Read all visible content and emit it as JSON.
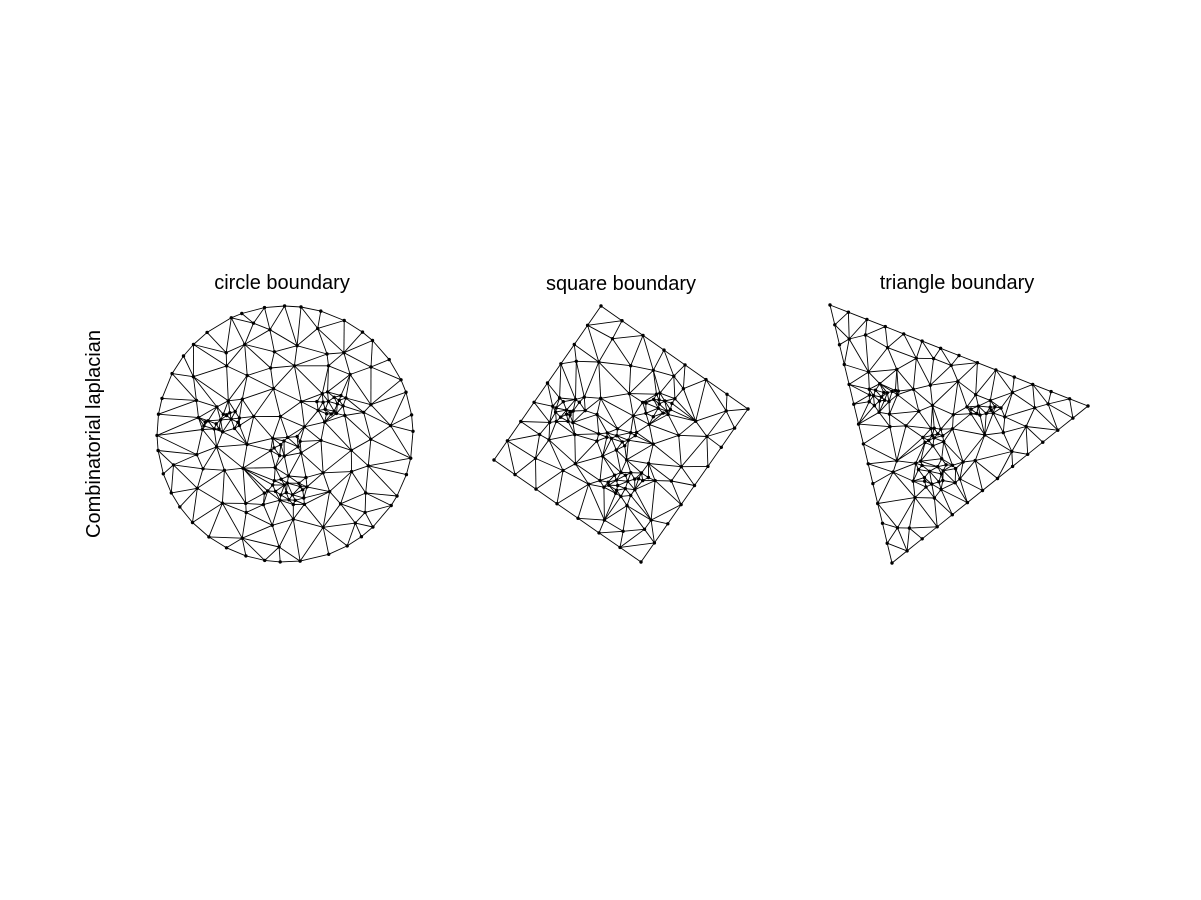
{
  "figure": {
    "row_label": "Combinatorial laplacian",
    "panels": [
      {
        "id": "circle",
        "title": "circle boundary",
        "boundary": "circle"
      },
      {
        "id": "square",
        "title": "square boundary",
        "boundary": "square"
      },
      {
        "id": "triangle",
        "title": "triangle boundary",
        "boundary": "triangle"
      }
    ],
    "colors": {
      "background": "#ffffff",
      "mesh": "#000000"
    }
  }
}
